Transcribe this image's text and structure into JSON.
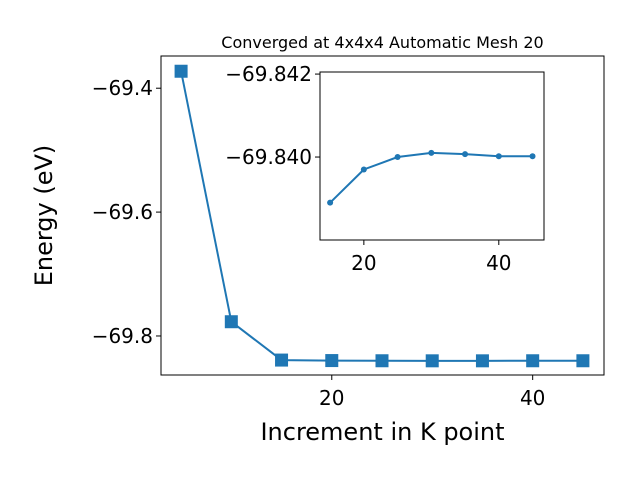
{
  "chart_data": [
    {
      "type": "line",
      "title": "Converged at 4x4x4 Automatic Mesh 20",
      "xlabel": "Increment in K point",
      "ylabel": "Energy (eV)",
      "x": [
        5,
        10,
        15,
        20,
        25,
        30,
        35,
        40,
        45
      ],
      "series": [
        {
          "color": "#1f77b4",
          "marker": "square",
          "values": [
            -69.3726,
            -69.777,
            -69.8389,
            -69.8397,
            -69.84,
            -69.8401,
            -69.8401,
            -69.84,
            -69.84
          ]
        }
      ],
      "xlim": [
        3,
        47.1
      ],
      "xticks": [
        20,
        40
      ],
      "ylim": [
        -69.863,
        -69.348
      ],
      "yticks": [
        {
          "value": -69.8,
          "label": "−69.8"
        },
        {
          "value": -69.6,
          "label": "−69.6"
        },
        {
          "value": -69.4,
          "label": "−69.4"
        }
      ]
    },
    {
      "type": "line",
      "x": [
        15,
        20,
        25,
        30,
        35,
        40,
        45
      ],
      "series": [
        {
          "color": "#1f77b4",
          "marker": "circle",
          "values": [
            -69.8389,
            -69.8397,
            -69.84,
            -69.8401,
            -69.84007,
            -69.84002,
            -69.84002
          ]
        }
      ],
      "xlim": [
        13.5,
        46.7
      ],
      "xticks": [
        20,
        40
      ],
      "ylim": [
        -69.838,
        -69.84205
      ],
      "yticks": [
        {
          "value": -69.84,
          "label": "−69.840"
        },
        {
          "value": -69.842,
          "label": "−69.842"
        }
      ]
    }
  ]
}
